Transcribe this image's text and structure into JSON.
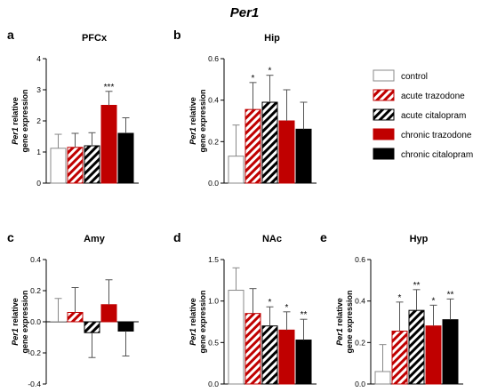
{
  "figure_title": "Per1",
  "ylabel_gene": "Per1",
  "ylabel_rest1": " relative",
  "ylabel_rest2": "gene expression",
  "legend": [
    {
      "label": "control",
      "color": "#ffffff",
      "pattern": "none"
    },
    {
      "label": "acute trazodone",
      "color": "#c00000",
      "pattern": "stripe"
    },
    {
      "label": "acute citalopram",
      "color": "#000000",
      "pattern": "stripe"
    },
    {
      "label": "chronic trazodone",
      "color": "#c00000",
      "pattern": "solid"
    },
    {
      "label": "chronic citalopram",
      "color": "#000000",
      "pattern": "solid"
    }
  ],
  "chart_data": [
    {
      "type": "bar",
      "letter": "a",
      "title": "PFCx",
      "ylim": [
        0,
        4
      ],
      "yticks": [
        0,
        1,
        2,
        3,
        4
      ],
      "tick_labels": [
        "0",
        "1",
        "2",
        "3",
        "4"
      ],
      "values": [
        1.12,
        1.15,
        1.2,
        2.5,
        1.6
      ],
      "errors": [
        0.45,
        0.45,
        0.42,
        0.45,
        0.5
      ],
      "sig": [
        "",
        "",
        "",
        "***",
        ""
      ]
    },
    {
      "type": "bar",
      "letter": "b",
      "title": "Hip",
      "ylim": [
        0,
        0.6
      ],
      "yticks": [
        0,
        0.2,
        0.4,
        0.6
      ],
      "tick_labels": [
        "0.0",
        "0.2",
        "0.4",
        "0.6"
      ],
      "values": [
        0.13,
        0.355,
        0.39,
        0.3,
        0.26
      ],
      "errors": [
        0.15,
        0.13,
        0.13,
        0.15,
        0.13
      ],
      "sig": [
        "",
        "*",
        "*",
        "",
        ""
      ]
    },
    {
      "type": "bar",
      "letter": "c",
      "title": "Amy",
      "ylim": [
        -0.4,
        0.4
      ],
      "yticks": [
        -0.4,
        -0.2,
        0,
        0.2,
        0.4
      ],
      "tick_labels": [
        "-0.4",
        "-0.2",
        "0.0",
        "0.2",
        "0.4"
      ],
      "values": [
        0.0,
        0.06,
        -0.07,
        0.11,
        -0.06
      ],
      "errors": [
        0.15,
        0.16,
        0.16,
        0.16,
        0.16
      ],
      "sig": [
        "",
        "",
        "",
        "",
        ""
      ]
    },
    {
      "type": "bar",
      "letter": "d",
      "title": "NAc",
      "ylim": [
        0,
        1.5
      ],
      "yticks": [
        0,
        0.5,
        1.0,
        1.5
      ],
      "tick_labels": [
        "0.0",
        "0.5",
        "1.0",
        "1.5"
      ],
      "values": [
        1.13,
        0.85,
        0.7,
        0.65,
        0.53
      ],
      "errors": [
        0.27,
        0.3,
        0.23,
        0.22,
        0.25
      ],
      "sig": [
        "",
        "",
        "*",
        "*",
        "**"
      ]
    },
    {
      "type": "bar",
      "letter": "e",
      "title": "Hyp",
      "ylim": [
        0,
        0.6
      ],
      "yticks": [
        0,
        0.2,
        0.4,
        0.6
      ],
      "tick_labels": [
        "0.0",
        "0.2",
        "0.4",
        "0.6"
      ],
      "values": [
        0.06,
        0.255,
        0.355,
        0.28,
        0.31
      ],
      "errors": [
        0.13,
        0.14,
        0.1,
        0.1,
        0.1
      ],
      "sig": [
        "",
        "*",
        "**",
        "*",
        "**"
      ]
    }
  ]
}
